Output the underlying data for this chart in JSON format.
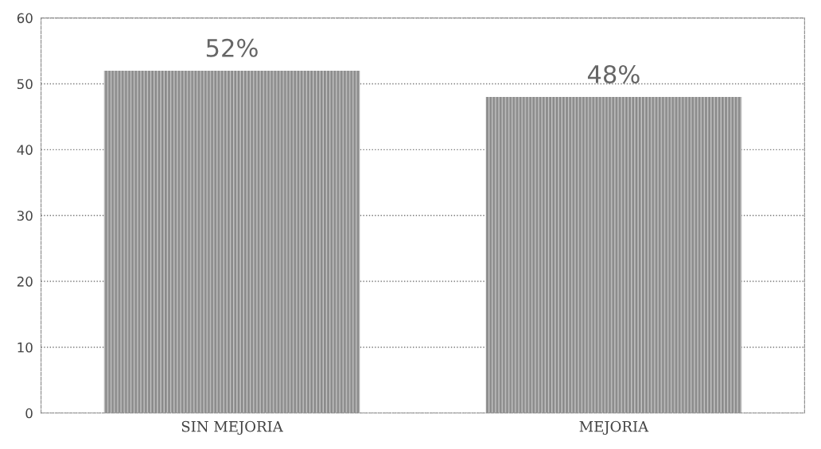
{
  "chart_data": {
    "type": "bar",
    "categories": [
      "SIN MEJORIA",
      "MEJORIA"
    ],
    "values": [
      52,
      48
    ],
    "value_labels": [
      "52%",
      "48%"
    ],
    "color": "#8a8a8a",
    "ylim": [
      0,
      60
    ],
    "yticks": [
      0,
      10,
      20,
      30,
      40,
      50,
      60
    ],
    "grid": "y"
  }
}
